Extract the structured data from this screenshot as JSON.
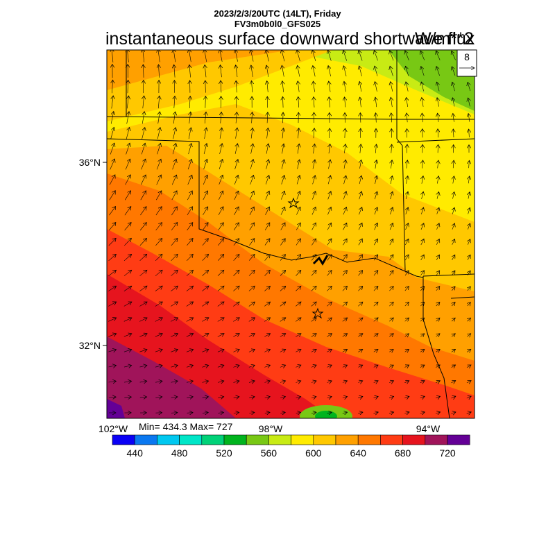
{
  "header": {
    "time_line": "2023/2/3/20UTC (14LT), Friday",
    "model_line": "FV3m0b0l0_GFS025",
    "title": "instantaneous surface downward shortwave flux",
    "units": "W/m**2"
  },
  "reference_vector": {
    "label": "8"
  },
  "map": {
    "lat_labels": [
      "36°N",
      "32°N"
    ],
    "lon_labels": [
      "102°W",
      "98°W",
      "94°W"
    ]
  },
  "stats": {
    "text": "Min= 434.3 Max= 727"
  },
  "colorbar": {
    "colors": [
      "#0a00f5",
      "#0a78f0",
      "#00c8f0",
      "#00e6c8",
      "#00d278",
      "#00b41e",
      "#78c814",
      "#c8eb14",
      "#ffeb00",
      "#ffc800",
      "#ffa000",
      "#ff7800",
      "#ff3c14",
      "#e6141e",
      "#a0145a",
      "#640096"
    ],
    "tick_labels": [
      "440",
      "480",
      "520",
      "560",
      "600",
      "640",
      "680",
      "720"
    ]
  },
  "palette": {
    "bands": [
      "#a0145a",
      "#e6141e",
      "#ff3c14",
      "#ff7800",
      "#ffa000",
      "#ffc800",
      "#ffeb00",
      "#c8eb14",
      "#78c814",
      "#640096"
    ]
  }
}
